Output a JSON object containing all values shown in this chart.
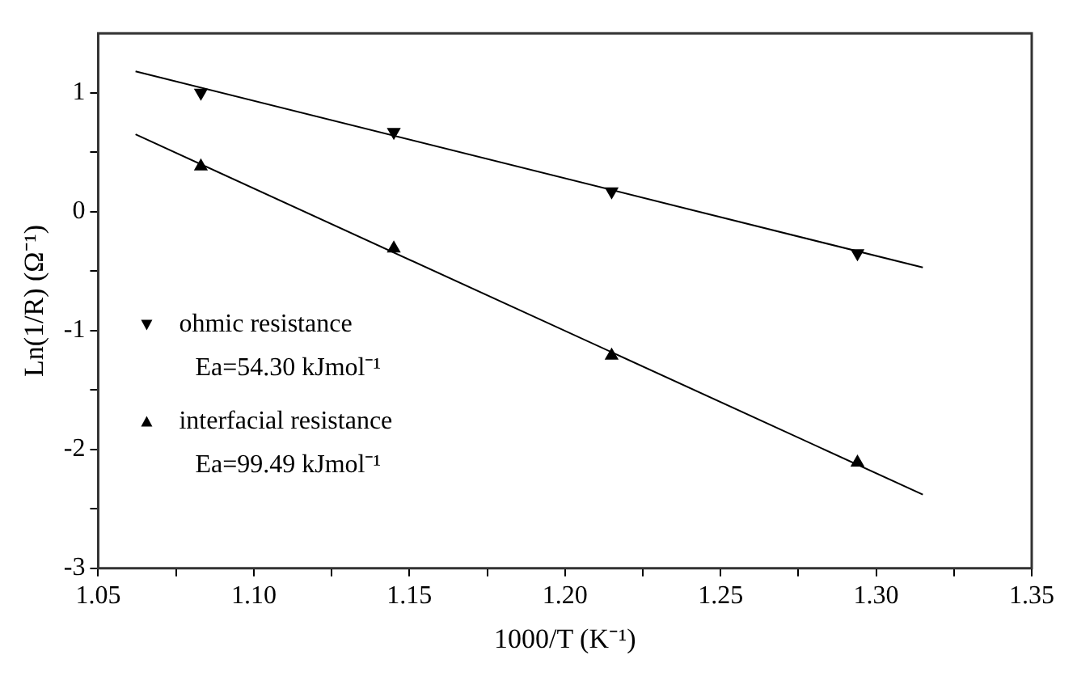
{
  "chart_data": {
    "type": "scatter",
    "xlabel": "1000/T (K⁻¹)",
    "ylabel": "Ln(1/R) (Ω⁻¹)",
    "xlim": [
      1.05,
      1.35
    ],
    "xticks": [
      {
        "value": 1.05,
        "label": "1.05"
      },
      {
        "value": 1.075,
        "label": null
      },
      {
        "value": 1.1,
        "label": "1.10"
      },
      {
        "value": 1.125,
        "label": null
      },
      {
        "value": 1.15,
        "label": "1.15"
      },
      {
        "value": 1.175,
        "label": null
      },
      {
        "value": 1.2,
        "label": "1.20"
      },
      {
        "value": 1.225,
        "label": null
      },
      {
        "value": 1.25,
        "label": "1.25"
      },
      {
        "value": 1.275,
        "label": null
      },
      {
        "value": 1.3,
        "label": "1.30"
      },
      {
        "value": 1.325,
        "label": null
      },
      {
        "value": 1.35,
        "label": "1.35"
      }
    ],
    "ylim": [
      -3,
      1.5
    ],
    "yticks": [
      -3,
      {
        "value": -2.5,
        "label": null
      },
      -2,
      {
        "value": -1.5,
        "label": null
      },
      -1,
      {
        "value": -0.5,
        "label": null
      },
      0,
      {
        "value": 0.5,
        "label": null
      },
      1
    ],
    "grid": false,
    "legend": "left",
    "series": [
      {
        "name": "ohmic resistance",
        "marker": "triangle_down",
        "color": "#000000",
        "x": [
          1.083,
          1.145,
          1.215,
          1.294
        ],
        "values": [
          1.0,
          0.67,
          0.17,
          -0.35
        ]
      },
      {
        "name": "interfacial resistance",
        "marker": "triangle",
        "color": "#000000",
        "x": [
          1.083,
          1.145,
          1.215,
          1.294
        ],
        "values": [
          0.38,
          -0.31,
          -1.21,
          -2.11
        ]
      },
      {
        "type": "line",
        "marker": "none",
        "color": "#000000",
        "x": [
          1.062,
          1.315
        ],
        "values": [
          1.18,
          -0.47
        ]
      },
      {
        "type": "line",
        "marker": "none",
        "color": "#000000",
        "x": [
          1.062,
          1.315
        ],
        "values": [
          0.65,
          -2.38
        ]
      }
    ],
    "annotations": [
      "Ea=54.30 kJmol⁻¹",
      "Ea=99.49 kJmol⁻¹"
    ]
  }
}
